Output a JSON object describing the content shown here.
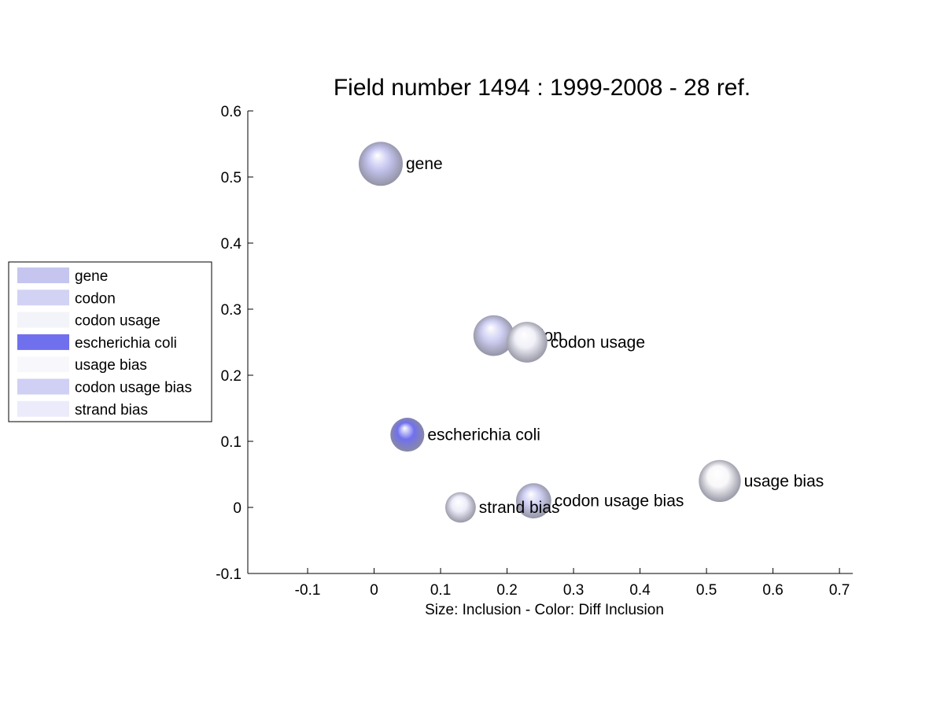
{
  "chart_data": {
    "type": "scatter",
    "title": "Field number 1494 : 1999-2008  - 28 ref.",
    "xlabel": "Size: Inclusion - Color: Diff Inclusion",
    "ylabel": "",
    "xlim": [
      -0.19,
      0.72
    ],
    "ylim": [
      -0.1,
      0.6
    ],
    "xticks": [
      -0.1,
      0,
      0.1,
      0.2,
      0.3,
      0.4,
      0.5,
      0.6,
      0.7
    ],
    "yticks": [
      -0.1,
      0,
      0.1,
      0.2,
      0.3,
      0.4,
      0.5,
      0.6
    ],
    "xtick_labels": [
      "-0.1",
      "0",
      "0.1",
      "0.2",
      "0.3",
      "0.4",
      "0.5",
      "0.6",
      "0.7"
    ],
    "ytick_labels": [
      "-0.1",
      "0",
      "0.1",
      "0.2",
      "0.3",
      "0.4",
      "0.5",
      "0.6"
    ],
    "grid": false,
    "legend_position": "left",
    "points": [
      {
        "label": "gene",
        "x": 0.01,
        "y": 0.52,
        "size": 0.65,
        "color": "#c5c5f0"
      },
      {
        "label": "codon",
        "x": 0.18,
        "y": 0.26,
        "size": 0.6,
        "color": "#cfcff3"
      },
      {
        "label": "codon usage",
        "x": 0.23,
        "y": 0.25,
        "size": 0.6,
        "color": "#f0f0f8"
      },
      {
        "label": "escherichia coli",
        "x": 0.05,
        "y": 0.11,
        "size": 0.5,
        "color": "#7070ee"
      },
      {
        "label": "usage bias",
        "x": 0.52,
        "y": 0.04,
        "size": 0.62,
        "color": "#f8f8fa"
      },
      {
        "label": "codon usage bias",
        "x": 0.24,
        "y": 0.01,
        "size": 0.52,
        "color": "#cfcff3"
      },
      {
        "label": "strand bias",
        "x": 0.13,
        "y": 0.0,
        "size": 0.45,
        "color": "#ededfa"
      }
    ],
    "legend": [
      {
        "label": "gene",
        "color": "#c5c5f0"
      },
      {
        "label": "codon",
        "color": "#d2d2f5"
      },
      {
        "label": "codon usage",
        "color": "#f3f3fa"
      },
      {
        "label": "escherichia coli",
        "color": "#7070ee"
      },
      {
        "label": "usage bias",
        "color": "#f8f8fc"
      },
      {
        "label": "codon usage bias",
        "color": "#d0d0f5"
      },
      {
        "label": "strand bias",
        "color": "#ebebfb"
      }
    ]
  }
}
